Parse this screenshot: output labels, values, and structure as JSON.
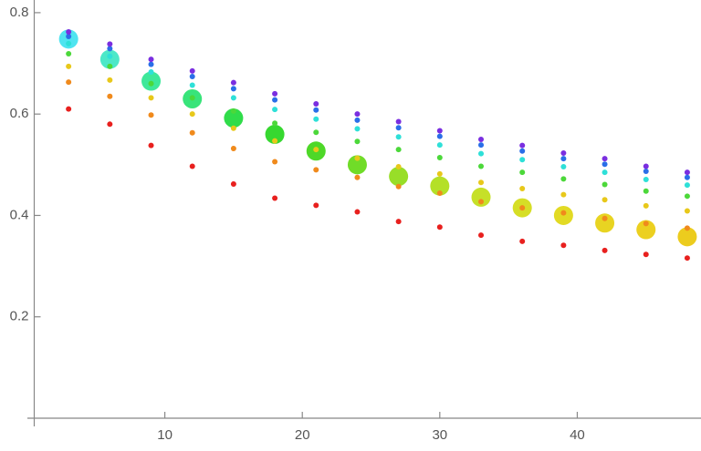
{
  "chart_data": {
    "type": "scatter",
    "x": [
      3,
      6,
      9,
      12,
      15,
      18,
      21,
      24,
      27,
      30,
      33,
      36,
      39,
      42,
      45,
      48
    ],
    "series": [
      {
        "color": "#e8201e",
        "values": [
          0.61,
          0.58,
          0.538,
          0.497,
          0.462,
          0.434,
          0.42,
          0.407,
          0.388,
          0.377,
          0.361,
          0.349,
          0.341,
          0.331,
          0.323,
          0.316
        ]
      },
      {
        "color": "#f08a1c",
        "values": [
          0.663,
          0.635,
          0.598,
          0.563,
          0.532,
          0.506,
          0.49,
          0.475,
          0.457,
          0.444,
          0.427,
          0.415,
          0.405,
          0.394,
          0.384,
          0.375
        ]
      },
      {
        "color": "#e8c81a",
        "values": [
          0.694,
          0.667,
          0.632,
          0.6,
          0.572,
          0.547,
          0.53,
          0.513,
          0.496,
          0.482,
          0.465,
          0.453,
          0.441,
          0.431,
          0.419,
          0.409
        ]
      },
      {
        "color": "#4cd83a",
        "values": [
          0.719,
          0.694,
          0.66,
          0.632,
          0.606,
          0.582,
          0.564,
          0.546,
          0.53,
          0.514,
          0.497,
          0.485,
          0.472,
          0.461,
          0.448,
          0.438
        ]
      },
      {
        "color": "#2ee0d8",
        "values": [
          0.739,
          0.714,
          0.683,
          0.657,
          0.632,
          0.609,
          0.59,
          0.571,
          0.555,
          0.539,
          0.522,
          0.51,
          0.496,
          0.485,
          0.471,
          0.46
        ]
      },
      {
        "color": "#2a6ee8",
        "values": [
          0.753,
          0.729,
          0.698,
          0.674,
          0.65,
          0.628,
          0.608,
          0.588,
          0.573,
          0.556,
          0.539,
          0.527,
          0.512,
          0.501,
          0.487,
          0.475
        ]
      },
      {
        "color": "#7a2ee0",
        "values": [
          0.762,
          0.738,
          0.708,
          0.685,
          0.662,
          0.64,
          0.62,
          0.6,
          0.585,
          0.567,
          0.55,
          0.538,
          0.523,
          0.512,
          0.497,
          0.485
        ]
      },
      {
        "colors": [
          "#4fe4f0",
          "#4ce8c8",
          "#3ee89a",
          "#38e47a",
          "#30dc4a",
          "#36d830",
          "#4ed828",
          "#70dc28",
          "#98de28",
          "#b4e028",
          "#c6e028",
          "#d6de26",
          "#e2da24",
          "#e8d422",
          "#ecd020",
          "#eccc1e"
        ],
        "values": [
          0.748,
          0.708,
          0.665,
          0.63,
          0.592,
          0.56,
          0.527,
          0.5,
          0.477,
          0.458,
          0.436,
          0.415,
          0.4,
          0.385,
          0.372,
          0.358
        ]
      }
    ],
    "xlim": [
      0.5,
      49
    ],
    "ylim": [
      0,
      0.825
    ],
    "xticks": [
      10,
      20,
      30,
      40
    ],
    "yticks": [
      0.2,
      0.4,
      0.6,
      0.8
    ]
  }
}
